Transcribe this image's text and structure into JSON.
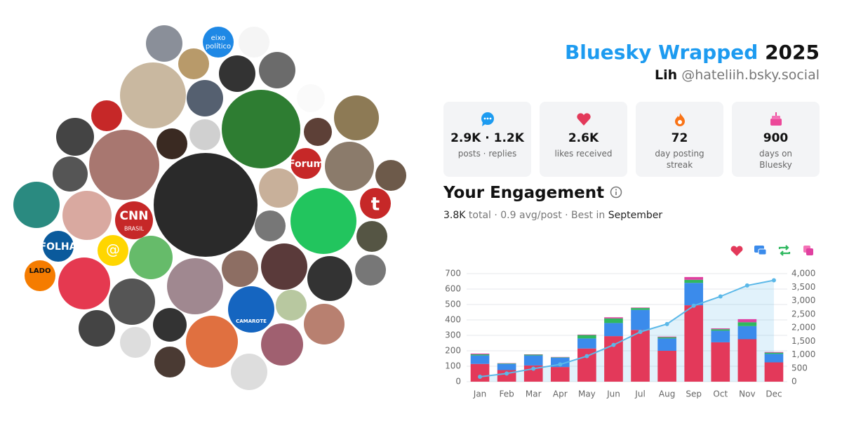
{
  "header": {
    "title": "Bluesky Wrapped",
    "year": "2025",
    "name": "Lih",
    "handle": "@hateliih.bsky.social"
  },
  "stats": [
    {
      "value": "2.9K · 1.2K",
      "label": "posts · replies"
    },
    {
      "value": "2.6K",
      "label": "likes received"
    },
    {
      "value": "72",
      "label": "day posting streak"
    },
    {
      "value": "900",
      "label": "days on Bluesky"
    }
  ],
  "engagement": {
    "title": "Your Engagement",
    "total": "3.8K",
    "summary": "total · 0.9 avg/post · Best in",
    "best_month": "September"
  },
  "avatar_logos": [
    "eixo",
    "político",
    "Forum",
    "t",
    "CNN",
    "BRASIL",
    "FOLHA",
    "@",
    "LADO",
    "CAMAROTE"
  ],
  "chart_data": {
    "type": "bar",
    "stacked": true,
    "categories": [
      "Jan",
      "Feb",
      "Mar",
      "Apr",
      "May",
      "Jun",
      "Jul",
      "Aug",
      "Sep",
      "Oct",
      "Nov",
      "Dec"
    ],
    "series": [
      {
        "color": "#e3395a",
        "values": [
          115,
          75,
          105,
          95,
          215,
          295,
          335,
          200,
          495,
          255,
          275,
          125
        ]
      },
      {
        "color": "#3b8beb",
        "values": [
          55,
          40,
          65,
          60,
          65,
          85,
          130,
          80,
          145,
          75,
          85,
          55
        ]
      },
      {
        "color": "#2fb85f",
        "values": [
          7,
          3,
          5,
          3,
          22,
          30,
          12,
          8,
          20,
          10,
          25,
          8
        ]
      },
      {
        "color": "#e040a0",
        "values": [
          5,
          2,
          2,
          2,
          3,
          7,
          3,
          4,
          18,
          5,
          20,
          4
        ]
      },
      {
        "type": "line",
        "axis": "y2",
        "color": "#5bb8e8",
        "values": [
          182,
          302,
          479,
          639,
          944,
          1361,
          1841,
          2133,
          2811,
          3156,
          3561,
          3753
        ]
      }
    ],
    "ylim": [
      0,
      700
    ],
    "yticks": [
      0,
      100,
      200,
      300,
      400,
      500,
      600,
      700
    ],
    "y2lim": [
      0,
      4000
    ],
    "y2ticks": [
      0,
      500,
      {
        "value": 1000,
        "label": "1,000"
      },
      {
        "value": 1500,
        "label": "1,500"
      },
      {
        "value": 2000,
        "label": "2,000"
      },
      {
        "value": 2500,
        "label": "2,500"
      },
      {
        "value": 3000,
        "label": "3,000"
      },
      {
        "value": 3500,
        "label": "3,500"
      },
      {
        "value": 4000,
        "label": "4,000"
      }
    ],
    "grid": true
  }
}
